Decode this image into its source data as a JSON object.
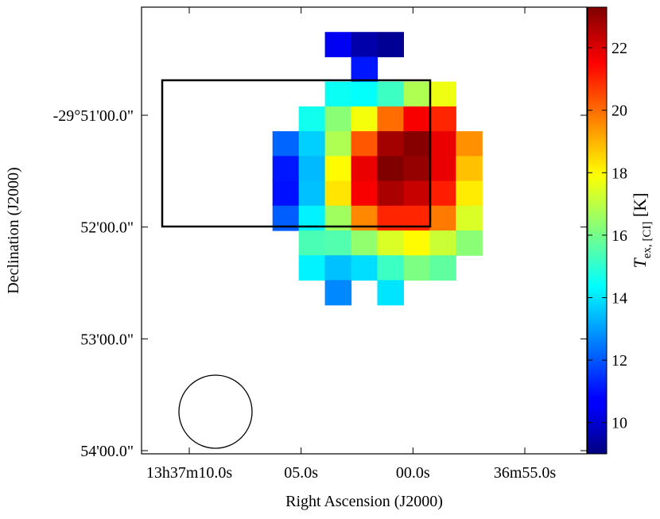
{
  "chart_data": {
    "type": "heatmap",
    "xlabel": "Right Ascension (J2000)",
    "ylabel": "Declination (J2000)",
    "colorbar": {
      "label_main": "T",
      "label_sub": "ex, [CI]",
      "label_unit": "[K]",
      "vmin": 9.0,
      "vmax": 23.3,
      "ticks": [
        10,
        12,
        14,
        16,
        18,
        20,
        22
      ],
      "colormap": "jet"
    },
    "x_ticks": [
      {
        "label": "13h37m10.0s",
        "ra_sec_offset": 0
      },
      {
        "label": "05.0s",
        "ra_sec_offset": 5
      },
      {
        "label": "00.0s",
        "ra_sec_offset": 10
      },
      {
        "label": "36m55.0s",
        "ra_sec_offset": 15
      }
    ],
    "y_ticks": [
      {
        "label": "-29°51'00.0\"",
        "dec_arcsec_below_top_tick": 0
      },
      {
        "label": "52'00.0\"",
        "dec_arcsec_below_top_tick": 60
      },
      {
        "label": "53'00.0\"",
        "dec_arcsec_below_top_tick": 120
      },
      {
        "label": "54'00.0\"",
        "dec_arcsec_below_top_tick": 180
      }
    ],
    "grid": false,
    "rows": [
      [
        null,
        null,
        null,
        null,
        null,
        null,
        null,
        null,
        null,
        null,
        null,
        null,
        null,
        null,
        null,
        null,
        null
      ],
      [
        null,
        null,
        null,
        null,
        null,
        null,
        null,
        10.6,
        9.6,
        9.3,
        null,
        null,
        null,
        null,
        null,
        null,
        null
      ],
      [
        null,
        null,
        null,
        null,
        null,
        null,
        null,
        null,
        11.1,
        null,
        null,
        null,
        null,
        null,
        null,
        null,
        null
      ],
      [
        null,
        null,
        null,
        null,
        null,
        null,
        null,
        14.5,
        14.4,
        15.2,
        16.8,
        17.7,
        null,
        null,
        null,
        null,
        null
      ],
      [
        null,
        null,
        null,
        null,
        null,
        null,
        14.6,
        16.3,
        17.8,
        20.0,
        21.6,
        21.0,
        null,
        null,
        null,
        null,
        null
      ],
      [
        null,
        null,
        null,
        null,
        null,
        12.2,
        13.7,
        16.8,
        20.3,
        22.8,
        23.2,
        21.8,
        19.5,
        null,
        null,
        null,
        null
      ],
      [
        null,
        null,
        null,
        null,
        null,
        11.1,
        13.4,
        18.0,
        21.8,
        23.3,
        23.0,
        21.8,
        18.8,
        null,
        null,
        null,
        null
      ],
      [
        null,
        null,
        null,
        null,
        null,
        11.0,
        13.5,
        18.3,
        21.6,
        22.7,
        22.3,
        21.1,
        18.2,
        null,
        null,
        null,
        null
      ],
      [
        null,
        null,
        null,
        null,
        null,
        12.1,
        14.2,
        16.6,
        19.6,
        21.0,
        21.0,
        19.8,
        17.4,
        null,
        null,
        null,
        null
      ],
      [
        null,
        null,
        null,
        null,
        null,
        null,
        15.4,
        15.5,
        16.4,
        17.4,
        18.0,
        17.2,
        16.3,
        null,
        null,
        null,
        null
      ],
      [
        null,
        null,
        null,
        null,
        null,
        null,
        14.2,
        13.5,
        13.9,
        15.2,
        16.1,
        15.7,
        null,
        null,
        null,
        null,
        null
      ],
      [
        null,
        null,
        null,
        null,
        null,
        null,
        null,
        12.7,
        null,
        14.0,
        null,
        null,
        null,
        null,
        null,
        null,
        null
      ],
      [
        null,
        null,
        null,
        null,
        null,
        null,
        null,
        null,
        null,
        null,
        null,
        null,
        null,
        null,
        null,
        null,
        null
      ],
      [
        null,
        null,
        null,
        null,
        null,
        null,
        null,
        null,
        null,
        null,
        null,
        null,
        null,
        null,
        null,
        null,
        null
      ],
      [
        null,
        null,
        null,
        null,
        null,
        null,
        null,
        null,
        null,
        null,
        null,
        null,
        null,
        null,
        null,
        null,
        null
      ],
      [
        null,
        null,
        null,
        null,
        null,
        null,
        null,
        null,
        null,
        null,
        null,
        null,
        null,
        null,
        null,
        null,
        null
      ],
      [
        null,
        null,
        null,
        null,
        null,
        null,
        null,
        null,
        null,
        null,
        null,
        null,
        null,
        null,
        null,
        null,
        null
      ],
      [
        null,
        null,
        null,
        null,
        null,
        null,
        null,
        null,
        null,
        null,
        null,
        null,
        null,
        null,
        null,
        null,
        null
      ]
    ],
    "overlays": [
      {
        "kind": "rectangle"
      },
      {
        "kind": "beam-circle"
      }
    ]
  }
}
